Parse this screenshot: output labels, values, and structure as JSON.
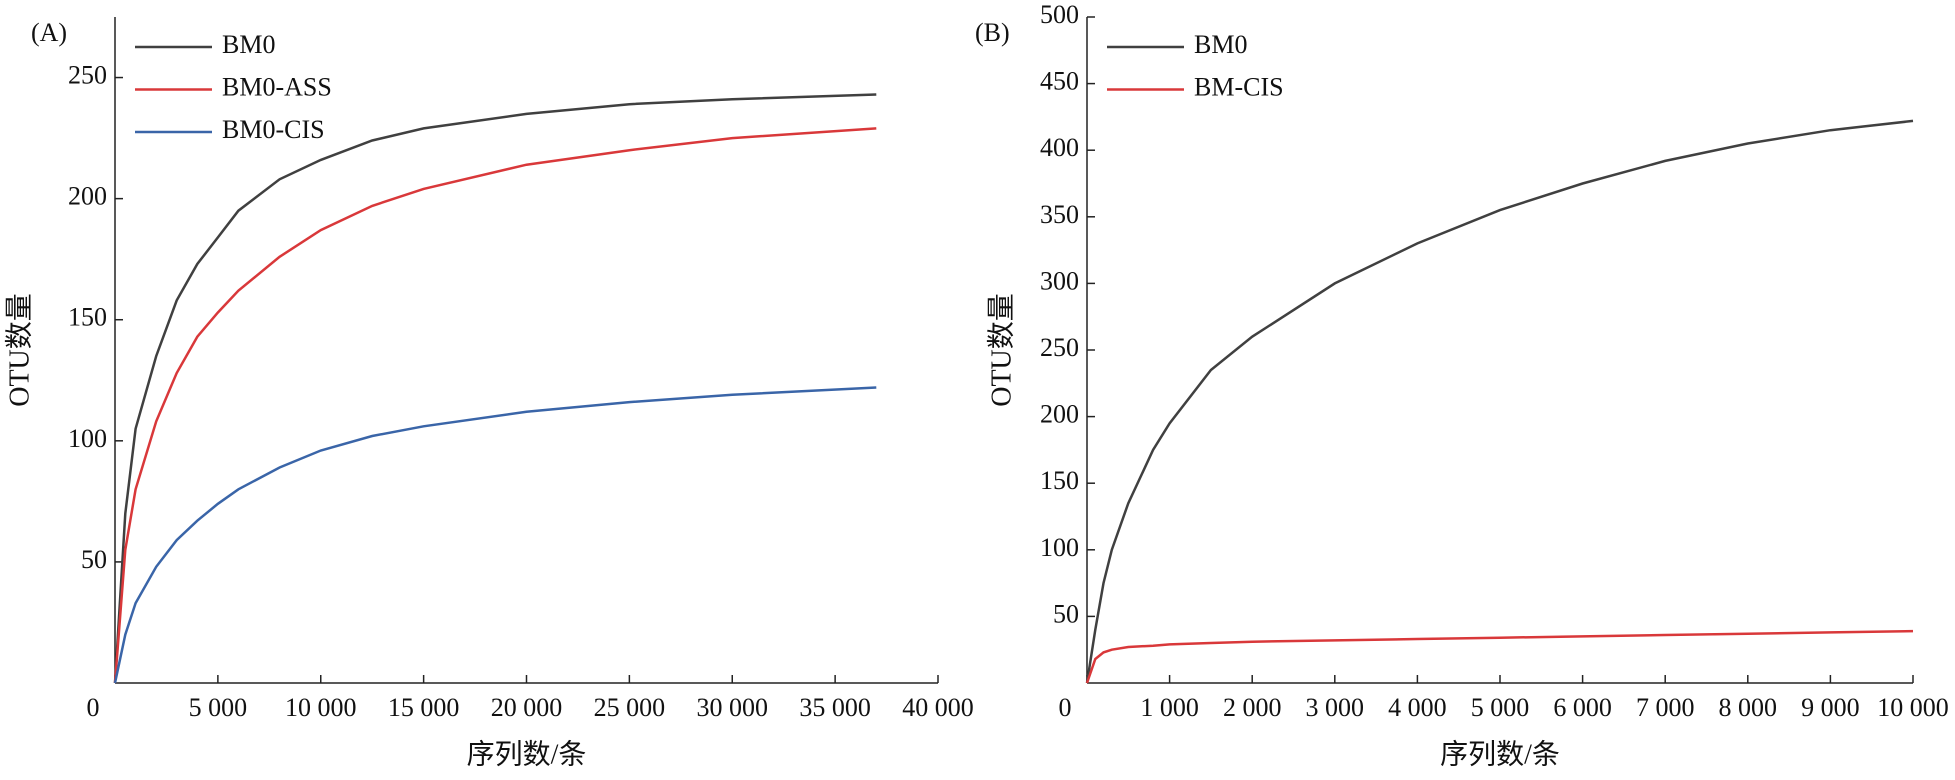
{
  "chart_data": [
    {
      "type": "line",
      "panel_label": "(A)",
      "x_label": "序列数/条",
      "y_label": "OTU数量",
      "x": [
        0,
        500,
        1000,
        2000,
        3000,
        4000,
        5000,
        6000,
        8000,
        10000,
        12500,
        15000,
        20000,
        25000,
        30000,
        37000
      ],
      "series": [
        {
          "name": "BM0",
          "color": "#404040",
          "values": [
            0,
            70,
            105,
            135,
            158,
            173,
            184,
            195,
            208,
            216,
            224,
            229,
            235,
            239,
            241,
            243
          ]
        },
        {
          "name": "BM0-ASS",
          "color": "#d9383a",
          "values": [
            0,
            55,
            80,
            108,
            128,
            143,
            153,
            162,
            176,
            187,
            197,
            204,
            214,
            220,
            225,
            229
          ]
        },
        {
          "name": "BM0-CIS",
          "color": "#3a65a8",
          "values": [
            0,
            20,
            33,
            48,
            59,
            67,
            74,
            80,
            89,
            96,
            102,
            106,
            112,
            116,
            119,
            122
          ]
        }
      ],
      "xlim": [
        0,
        40000
      ],
      "xticks": [
        0,
        {
          "value": 5000,
          "label": "5 000"
        },
        {
          "value": 10000,
          "label": "10 000"
        },
        {
          "value": 15000,
          "label": "15 000"
        },
        {
          "value": 20000,
          "label": "20 000"
        },
        {
          "value": 25000,
          "label": "25 000"
        },
        {
          "value": 30000,
          "label": "30 000"
        },
        {
          "value": 35000,
          "label": "35 000"
        },
        {
          "value": 40000,
          "label": "40 000"
        }
      ],
      "ylim": [
        0,
        275
      ],
      "yticks": [
        50,
        100,
        150,
        200,
        250
      ],
      "legend": "upper left"
    },
    {
      "type": "line",
      "panel_label": "(B)",
      "x_label": "序列数/条",
      "y_label": "OTU数量",
      "x": [
        0,
        100,
        200,
        300,
        500,
        800,
        1000,
        1500,
        2000,
        3000,
        4000,
        5000,
        6000,
        7000,
        8000,
        9000,
        10000
      ],
      "series": [
        {
          "name": "BM0",
          "color": "#404040",
          "values": [
            0,
            40,
            75,
            100,
            135,
            175,
            195,
            235,
            260,
            300,
            330,
            355,
            375,
            392,
            405,
            415,
            422
          ]
        },
        {
          "name": "BM-CIS",
          "color": "#d9383a",
          "values": [
            0,
            18,
            23,
            25,
            27,
            28,
            29,
            30,
            31,
            32,
            33,
            34,
            35,
            36,
            37,
            38,
            39
          ]
        }
      ],
      "xlim": [
        0,
        10000
      ],
      "xticks": [
        0,
        {
          "value": 1000,
          "label": "1 000"
        },
        {
          "value": 2000,
          "label": "2 000"
        },
        {
          "value": 3000,
          "label": "3 000"
        },
        {
          "value": 4000,
          "label": "4 000"
        },
        {
          "value": 5000,
          "label": "5 000"
        },
        {
          "value": 6000,
          "label": "6 000"
        },
        {
          "value": 7000,
          "label": "7 000"
        },
        {
          "value": 8000,
          "label": "8 000"
        },
        {
          "value": 9000,
          "label": "9 000"
        },
        {
          "value": 10000,
          "label": "10 000"
        }
      ],
      "ylim": [
        0,
        500
      ],
      "yticks": [
        50,
        100,
        150,
        200,
        250,
        300,
        350,
        400,
        450,
        500
      ],
      "legend": "upper left"
    }
  ]
}
